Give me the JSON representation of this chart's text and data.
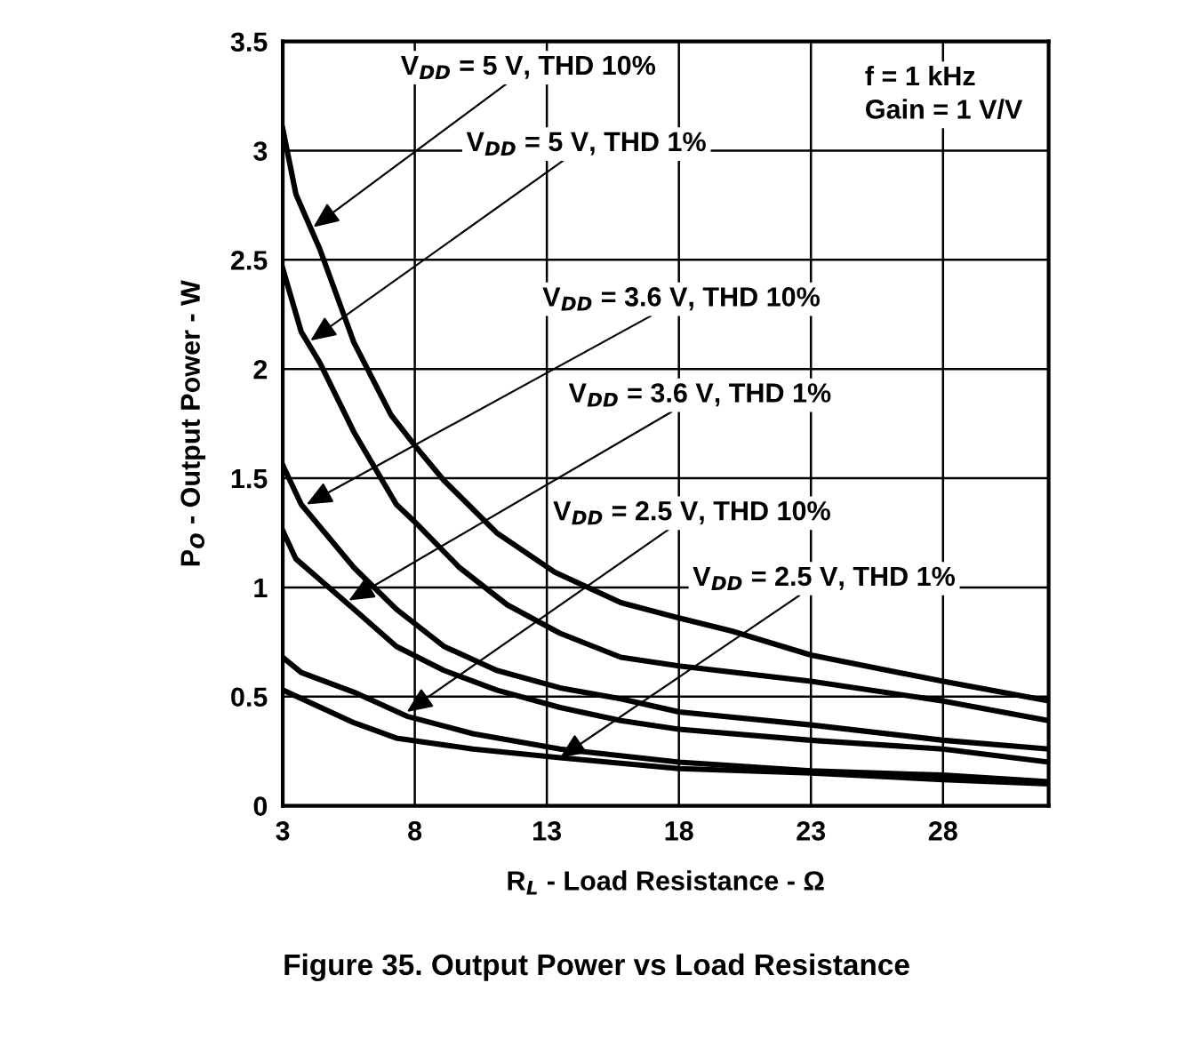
{
  "chart_data": {
    "type": "line",
    "title": "Figure 35. Output Power vs Load Resistance",
    "xlabel": "R$_{L}$ - Load Resistance - Ω",
    "ylabel": "P$_{O}$ - Output Power - W",
    "xlim": [
      3,
      32
    ],
    "xticks": [
      3,
      8,
      13,
      18,
      23,
      28
    ],
    "ylim": [
      0,
      3.5
    ],
    "yticks": [
      0,
      0.5,
      1,
      1.5,
      2,
      2.5,
      3,
      3.5
    ],
    "grid": true,
    "legend": false,
    "marker": "none",
    "line_style": "solid",
    "series": [
      {
        "color": "#000000",
        "x": [
          3,
          3.5,
          4.4,
          5.7,
          7.1,
          8,
          9.1,
          11.1,
          13.3,
          15.8,
          18,
          20,
          23,
          28,
          32
        ],
        "values": [
          3.1,
          2.8,
          2.55,
          2.12,
          1.79,
          1.65,
          1.49,
          1.25,
          1.07,
          0.93,
          0.86,
          0.8,
          0.69,
          0.57,
          0.48
        ]
      },
      {
        "color": "#000000",
        "x": [
          3,
          3.7,
          4.4,
          5.7,
          7.3,
          8,
          9.7,
          11.5,
          13.5,
          15.8,
          18,
          23,
          28,
          32
        ],
        "values": [
          2.46,
          2.17,
          2.03,
          1.71,
          1.38,
          1.3,
          1.09,
          0.92,
          0.79,
          0.68,
          0.64,
          0.57,
          0.48,
          0.39
        ]
      },
      {
        "color": "#000000",
        "x": [
          3,
          3.7,
          5.7,
          7.3,
          9.1,
          11.1,
          13.5,
          15.8,
          18,
          23,
          28,
          32
        ],
        "values": [
          1.56,
          1.38,
          1.09,
          0.9,
          0.73,
          0.62,
          0.54,
          0.49,
          0.43,
          0.37,
          0.3,
          0.26
        ]
      },
      {
        "color": "#000000",
        "x": [
          3,
          3.5,
          5.7,
          7.3,
          9.1,
          11.1,
          13.5,
          15.8,
          18,
          23,
          28,
          32
        ],
        "values": [
          1.26,
          1.13,
          0.9,
          0.73,
          0.62,
          0.53,
          0.45,
          0.39,
          0.35,
          0.3,
          0.26,
          0.2
        ]
      },
      {
        "color": "#000000",
        "x": [
          3,
          3.7,
          5.7,
          7.7,
          10.2,
          13.5,
          18,
          23,
          28,
          32
        ],
        "values": [
          0.68,
          0.61,
          0.52,
          0.41,
          0.33,
          0.26,
          0.2,
          0.16,
          0.14,
          0.11
        ]
      },
      {
        "color": "#000000",
        "x": [
          3,
          5.7,
          7.3,
          10.2,
          13.5,
          18,
          23,
          28,
          32
        ],
        "values": [
          0.53,
          0.38,
          0.31,
          0.26,
          0.22,
          0.17,
          0.15,
          0.12,
          0.1
        ]
      }
    ],
    "annotations": [
      {
        "text": "V$_{DD}$ = 5 V, THD 10%",
        "x": 4.16,
        "y": 2.65
      },
      {
        "text": "V$_{DD}$ = 5 V, THD 1%",
        "x": 4.05,
        "y": 2.13
      },
      {
        "text": "V$_{DD}$ = 3.6 V, THD 10%",
        "x": 3.9,
        "y": 1.38
      },
      {
        "text": "V$_{DD}$ = 3.6 V, THD 1%",
        "x": 5.5,
        "y": 0.94
      },
      {
        "text": "V$_{DD}$ = 2.5 V, THD 10%",
        "x": 7.7,
        "y": 0.43
      },
      {
        "text": "V$_{DD}$ = 2.5 V, THD 1%",
        "x": 13.5,
        "y": 0.22
      },
      "f = 1 kHz\nGain = 1 V/V"
    ]
  }
}
